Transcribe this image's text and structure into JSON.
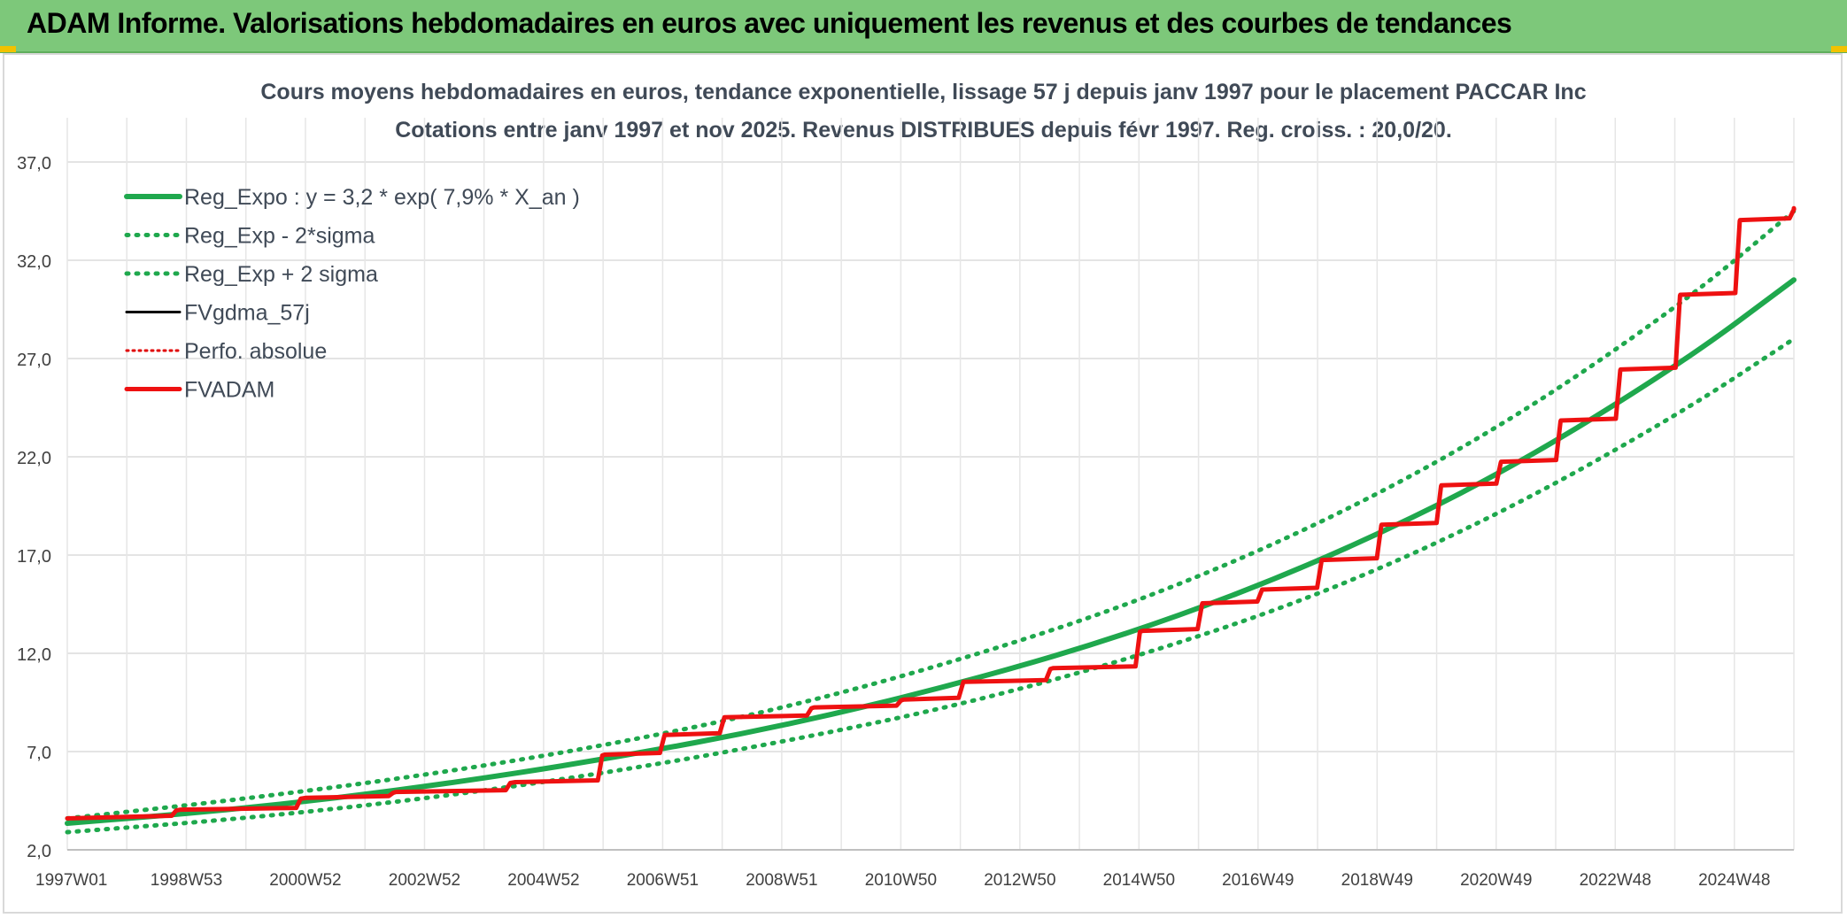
{
  "banner": {
    "title": "ADAM Informe. Valorisations hebdomadaires en euros avec uniquement les revenus et des courbes de tendances"
  },
  "chart_data": {
    "type": "line",
    "title": "Cours moyens hebdomadaires en euros, tendance exponentielle, lissage 57 j depuis janv 1997 pour le placement PACCAR Inc",
    "subtitle": "Cotations entre janv 1997 et nov 2025. Revenus DISTRIBUES depuis févr 1997. Reg. croiss. : 20,0/20.",
    "xlabel": "",
    "ylabel": "",
    "ylim": [
      2.0,
      37.0
    ],
    "yticks": [
      "2,0",
      "7,0",
      "12,0",
      "17,0",
      "22,0",
      "27,0",
      "32,0",
      "37,0"
    ],
    "xlim": [
      1997.0,
      2025.9
    ],
    "xticks": [
      "1997W01",
      "1998W53",
      "2000W52",
      "2002W52",
      "2004W52",
      "2006W51",
      "2008W51",
      "2010W50",
      "2012W50",
      "2014W50",
      "2016W49",
      "2018W49",
      "2020W49",
      "2022W48",
      "2024W48"
    ],
    "grid": true,
    "legend_position": "top-left",
    "series": [
      {
        "name": "Reg_Expo : y = 3,2 * exp( 7,9% *  X_an )",
        "color": "#1fa84d",
        "style": "solid",
        "x": [
          1997,
          2000,
          2003,
          2006,
          2009,
          2012,
          2015,
          2018,
          2021,
          2024,
          2025.9
        ],
        "y": [
          3.35,
          4.1,
          5.2,
          6.6,
          8.3,
          10.5,
          13.2,
          16.7,
          21.1,
          26.7,
          31.0
        ]
      },
      {
        "name": "Reg_Exp - 2*sigma",
        "color": "#1fa84d",
        "style": "dotted",
        "x": [
          1997,
          2000,
          2003,
          2006,
          2009,
          2012,
          2015,
          2018,
          2021,
          2024,
          2025.9
        ],
        "y": [
          2.9,
          3.6,
          4.6,
          5.9,
          7.5,
          9.4,
          11.9,
          15.0,
          19.1,
          24.2,
          28.0
        ]
      },
      {
        "name": "Reg_Exp + 2 sigma",
        "color": "#1fa84d",
        "style": "dotted",
        "x": [
          1997,
          2000,
          2003,
          2006,
          2009,
          2012,
          2015,
          2018,
          2021,
          2024,
          2025.9
        ],
        "y": [
          3.6,
          4.6,
          5.8,
          7.3,
          9.2,
          11.7,
          14.7,
          18.6,
          23.5,
          29.7,
          34.5
        ]
      },
      {
        "name": "FVgdma_57j",
        "color": "#000000",
        "style": "solid",
        "x": [
          1997,
          1998.9,
          2001,
          2002.5,
          2004.5,
          2006,
          2007,
          2008,
          2009.5,
          2011,
          2012,
          2013.5,
          2015,
          2016,
          2017,
          2018,
          2019,
          2020,
          2021,
          2022,
          2023,
          2024,
          2025,
          2025.9
        ],
        "y": [
          3.6,
          4.0,
          4.6,
          4.9,
          5.4,
          6.8,
          7.8,
          8.7,
          9.2,
          9.6,
          10.5,
          11.2,
          13.1,
          14.5,
          15.2,
          16.7,
          18.5,
          20.5,
          21.7,
          23.8,
          26.4,
          30.2,
          34.0,
          34.6
        ]
      },
      {
        "name": "Perfo. absolue",
        "color": "#e00000",
        "style": "dotted",
        "x": [
          1997,
          1998.9,
          2001,
          2002.5,
          2004.5,
          2006,
          2007,
          2008,
          2009.5,
          2011,
          2012,
          2013.5,
          2015,
          2016,
          2017,
          2018,
          2019,
          2020,
          2021,
          2022,
          2023,
          2024,
          2025,
          2025.9
        ],
        "y": [
          3.6,
          4.0,
          4.6,
          4.9,
          5.4,
          6.8,
          7.8,
          8.7,
          9.2,
          9.6,
          10.5,
          11.2,
          13.1,
          14.5,
          15.2,
          16.7,
          18.5,
          20.5,
          21.7,
          23.8,
          26.4,
          30.2,
          34.0,
          34.6
        ]
      },
      {
        "name": "FVADAM",
        "color": "#ee1111",
        "style": "solid",
        "x": [
          1997,
          1998.9,
          2001,
          2002.5,
          2004.5,
          2006,
          2007,
          2008,
          2009.5,
          2011,
          2012,
          2013.5,
          2015,
          2016,
          2017,
          2018,
          2019,
          2020,
          2021,
          2022,
          2023,
          2024,
          2025,
          2025.9
        ],
        "y": [
          3.6,
          4.0,
          4.6,
          4.9,
          5.4,
          6.8,
          7.8,
          8.7,
          9.2,
          9.6,
          10.5,
          11.2,
          13.1,
          14.5,
          15.2,
          16.7,
          18.5,
          20.5,
          21.7,
          23.8,
          26.4,
          30.2,
          34.0,
          34.6
        ]
      }
    ]
  }
}
